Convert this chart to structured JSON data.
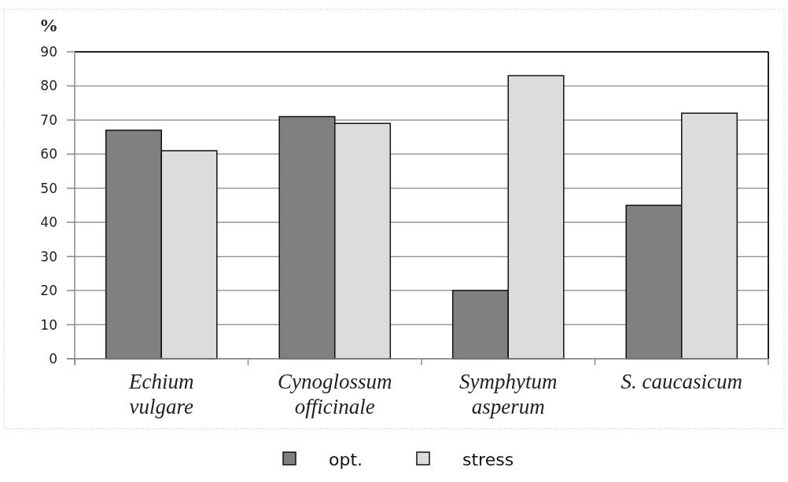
{
  "chart_data": {
    "type": "bar",
    "ylabel": "%",
    "categories": [
      "Echium\nvulgare",
      "Cynoglossum\nofficinale",
      "Symphytum\nasperum",
      "S. caucasicum"
    ],
    "series": [
      {
        "name": "opt.",
        "color": "#808080",
        "values": [
          67,
          71,
          20,
          45
        ]
      },
      {
        "name": "stress",
        "color": "#dcdcdc",
        "values": [
          61,
          69,
          83,
          72
        ]
      }
    ],
    "ylim": [
      0,
      90
    ],
    "yticks": [
      0,
      10,
      20,
      30,
      40,
      50,
      60,
      70,
      80,
      90
    ],
    "grid": "y",
    "legend": "bottom"
  }
}
